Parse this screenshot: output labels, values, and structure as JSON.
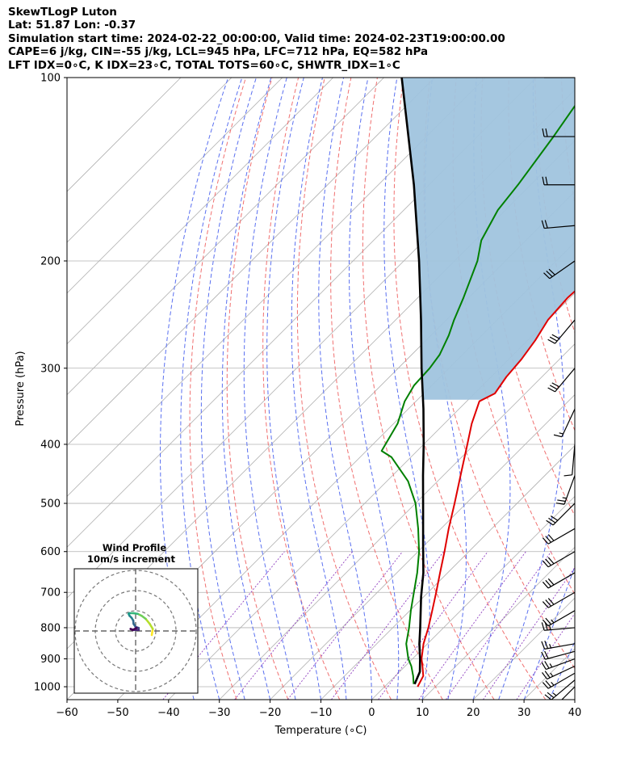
{
  "header": {
    "title": "SkewTLogP Luton",
    "location": "Lat: 51.87   Lon: -0.37",
    "times": "Simulation start time: 2024-02-22_00:00:00, Valid time: 2024-02-23T19:00:00.00",
    "params1": "CAPE=6 j/kg, CIN=-55 j/kg, LCL=945 hPa, LFC=712 hPa, EQ=582 hPa",
    "params2": "LFT IDX=0∘C, K IDX=23∘C, TOTAL TOTS=60∘C, SHWTR_IDX=1∘C"
  },
  "chart_data": {
    "type": "line",
    "subtype": "skew-T log-P diagram",
    "xlabel": "Temperature (∘C)",
    "ylabel": "Pressure (hPa)",
    "xlim": [
      -60,
      40
    ],
    "ylim": [
      1050,
      100
    ],
    "y_scale": "log",
    "skew": "isotherms skewed 45 degrees",
    "xticks": [
      -60,
      -50,
      -40,
      -30,
      -20,
      -10,
      0,
      10,
      20,
      30,
      40
    ],
    "yticks": [
      100,
      200,
      300,
      400,
      500,
      600,
      700,
      800,
      900,
      1000
    ],
    "grid": true,
    "colors": {
      "temperature": "#e00000",
      "dewpoint": "#008000",
      "parcel": "#000000",
      "cape_fill": "#a0c4de",
      "dry_adiabats": "#f07070",
      "moist_adiabats": "#5a70f0",
      "mixing_ratio": "#9040c0",
      "isotherms": "#b0b0b0"
    },
    "series": [
      {
        "key": "temperature",
        "values": [
          [
            1000,
            6.5
          ],
          [
            960,
            5.5
          ],
          [
            925,
            3.4
          ],
          [
            900,
            1.8
          ],
          [
            850,
            -0.8
          ],
          [
            800,
            -3.0
          ],
          [
            750,
            -5.6
          ],
          [
            700,
            -8.4
          ],
          [
            650,
            -11.5
          ],
          [
            600,
            -14.8
          ],
          [
            550,
            -18.5
          ],
          [
            500,
            -22.3
          ],
          [
            450,
            -26.6
          ],
          [
            400,
            -31.4
          ],
          [
            370,
            -34.6
          ],
          [
            340,
            -37.5
          ],
          [
            330,
            -36.0
          ],
          [
            310,
            -37.0
          ],
          [
            290,
            -37.5
          ],
          [
            270,
            -38.5
          ],
          [
            250,
            -40.0
          ],
          [
            230,
            -40.5
          ],
          [
            210,
            -40.0
          ],
          [
            200,
            -40.5
          ],
          [
            180,
            -41.5
          ],
          [
            160,
            -43.0
          ],
          [
            140,
            -44.5
          ],
          [
            120,
            -46.5
          ],
          [
            100,
            -48.5
          ]
        ]
      },
      {
        "key": "dewpoint",
        "values": [
          [
            990,
            5.2
          ],
          [
            960,
            3.5
          ],
          [
            925,
            1.2
          ],
          [
            900,
            -0.8
          ],
          [
            850,
            -4.2
          ],
          [
            800,
            -6.8
          ],
          [
            750,
            -9.8
          ],
          [
            700,
            -12.8
          ],
          [
            650,
            -16.0
          ],
          [
            600,
            -19.8
          ],
          [
            550,
            -24.5
          ],
          [
            500,
            -30.0
          ],
          [
            460,
            -35.8
          ],
          [
            420,
            -43.8
          ],
          [
            410,
            -47.0
          ],
          [
            370,
            -49.2
          ],
          [
            340,
            -52.2
          ],
          [
            320,
            -53.5
          ],
          [
            300,
            -53.8
          ],
          [
            285,
            -54.5
          ],
          [
            265,
            -56.5
          ],
          [
            250,
            -58.5
          ],
          [
            230,
            -61.0
          ],
          [
            200,
            -65.5
          ],
          [
            185,
            -68.8
          ],
          [
            165,
            -71.5
          ],
          [
            150,
            -72.5
          ],
          [
            125,
            -75.0
          ],
          [
            100,
            -78.5
          ]
        ]
      },
      {
        "key": "parcel",
        "values": [
          [
            990,
            5.4
          ],
          [
            945,
            4.0
          ],
          [
            900,
            1.5
          ],
          [
            850,
            -1.6
          ],
          [
            800,
            -4.6
          ],
          [
            712,
            -10.5
          ],
          [
            650,
            -14.8
          ],
          [
            582,
            -20.6
          ],
          [
            500,
            -28.5
          ],
          [
            450,
            -34.0
          ],
          [
            400,
            -40.0
          ],
          [
            350,
            -47.0
          ],
          [
            300,
            -55.4
          ],
          [
            250,
            -65.0
          ],
          [
            200,
            -77.0
          ],
          [
            150,
            -93.0
          ],
          [
            100,
            -116.5
          ]
        ]
      }
    ],
    "cape_shading": "between parcel and temperature, above 330 hPa",
    "wind_barbs": {
      "pressures": [
        1000,
        975,
        950,
        925,
        900,
        875,
        850,
        800,
        750,
        700,
        650,
        600,
        550,
        500,
        450,
        400,
        350,
        300,
        250,
        200,
        175,
        150,
        125,
        100
      ],
      "speed_kt": [
        25,
        25,
        25,
        25,
        25,
        20,
        25,
        25,
        25,
        30,
        30,
        30,
        30,
        30,
        25,
        10,
        15,
        30,
        30,
        30,
        20,
        20,
        20,
        20
      ],
      "direction_deg": [
        225,
        230,
        240,
        245,
        250,
        255,
        260,
        265,
        240,
        240,
        240,
        240,
        240,
        225,
        200,
        185,
        205,
        220,
        220,
        235,
        265,
        270,
        270,
        270
      ]
    },
    "inset": {
      "title": "Wind Profile",
      "subtitle": "10m/s increment",
      "ring_increment_ms": 10,
      "rings": 3,
      "hodograph_uv": [
        [
          8,
          -2
        ],
        [
          8.5,
          1
        ],
        [
          7,
          3.5
        ],
        [
          5,
          6
        ],
        [
          3,
          7.5
        ],
        [
          1,
          8.5
        ],
        [
          -1,
          8.8
        ],
        [
          -3,
          8.8
        ],
        [
          -3.5,
          8.5
        ],
        [
          -3,
          7.5
        ],
        [
          -2,
          6.5
        ],
        [
          -1.2,
          5.2
        ],
        [
          -1,
          3.5
        ],
        [
          0,
          2.0
        ],
        [
          1.5,
          1.5
        ],
        [
          1.5,
          0.5
        ],
        [
          -1,
          0.5
        ],
        [
          -2.5,
          1.0
        ],
        [
          -1.5,
          0.5
        ],
        [
          0.5,
          1.5
        ]
      ],
      "colormap": "viridis"
    }
  }
}
